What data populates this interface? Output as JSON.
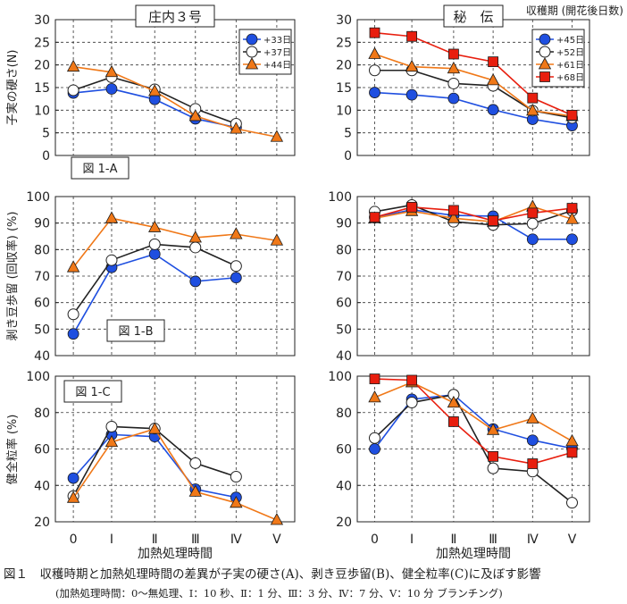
{
  "figure": {
    "caption": "図１　収穫時期と加熱処理時間の差異が子実の硬さ(A)、剥き豆歩留(B)、健全粒率(C)に及ぼす影響",
    "note": "(加熱処理時間：0～無処理、Ⅰ：10 秒、Ⅱ：1 分、Ⅲ：3 分、Ⅳ：7 分、Ⅴ：10 分 ブランチング)",
    "harvest_note": "収穫期 (開花後日数)",
    "xlabel": "加熱処理時間",
    "x_ticks": [
      "0",
      "Ⅰ",
      "Ⅱ",
      "Ⅲ",
      "Ⅳ",
      "Ⅴ"
    ],
    "ylabel_A": "子実の硬さ(N)",
    "ylabel_B": "剥き豆歩留 (回収率) (%)",
    "ylabel_C": "健全粒率 (%)",
    "colors": {
      "blue": "#1f4fe0",
      "black": "#222222",
      "orange": "#f07818",
      "red": "#e81e0e"
    }
  },
  "chart_data": [
    {
      "type": "line",
      "title": "庄内３号",
      "panel_label": "図 1-A",
      "ylim": [
        0,
        30
      ],
      "yticks": [
        0,
        5,
        10,
        15,
        20,
        25,
        30
      ],
      "categories": [
        "0",
        "Ⅰ",
        "Ⅱ",
        "Ⅲ",
        "Ⅳ",
        "Ⅴ"
      ],
      "legend": "top-right",
      "series": [
        {
          "name": "+33日",
          "marker": "circle-filled",
          "color": "#1f4fe0",
          "values": [
            13.8,
            14.7,
            12.4,
            8.1,
            6.2,
            null
          ]
        },
        {
          "name": "+37日",
          "marker": "circle-open",
          "color": "#222222",
          "values": [
            14.4,
            17.3,
            14.6,
            10.3,
            7.0,
            null
          ]
        },
        {
          "name": "+44日",
          "marker": "triangle",
          "color": "#f07818",
          "values": [
            19.6,
            18.4,
            14.2,
            8.7,
            5.9,
            4.1
          ]
        }
      ]
    },
    {
      "type": "line",
      "title": "秘　伝",
      "panel_label": "",
      "ylim": [
        0,
        30
      ],
      "yticks": [
        0,
        5,
        10,
        15,
        20,
        25,
        30
      ],
      "categories": [
        "0",
        "Ⅰ",
        "Ⅱ",
        "Ⅲ",
        "Ⅳ",
        "Ⅴ"
      ],
      "legend": "top-right",
      "series": [
        {
          "name": "+45日",
          "marker": "circle-filled",
          "color": "#1f4fe0",
          "values": [
            13.9,
            13.4,
            12.6,
            10.1,
            8.0,
            6.6
          ]
        },
        {
          "name": "+52日",
          "marker": "circle-open",
          "color": "#222222",
          "values": [
            18.8,
            18.8,
            15.9,
            15.4,
            9.9,
            8.3
          ]
        },
        {
          "name": "+61日",
          "marker": "triangle",
          "color": "#f07818",
          "values": [
            22.4,
            19.6,
            19.2,
            16.6,
            9.9,
            8.7
          ]
        },
        {
          "name": "+68日",
          "marker": "square",
          "color": "#e81e0e",
          "values": [
            27.1,
            26.3,
            22.4,
            20.7,
            12.7,
            8.9
          ]
        }
      ]
    },
    {
      "type": "line",
      "title": "",
      "panel_label": "図 1-B",
      "ylim": [
        40,
        100
      ],
      "yticks": [
        40,
        50,
        60,
        70,
        80,
        90,
        100
      ],
      "categories": [
        "0",
        "Ⅰ",
        "Ⅱ",
        "Ⅲ",
        "Ⅳ",
        "Ⅴ"
      ],
      "legend": "none",
      "series": [
        {
          "name": "+33日",
          "marker": "circle-filled",
          "color": "#1f4fe0",
          "values": [
            48.2,
            73.3,
            78.3,
            68.0,
            69.4,
            null
          ]
        },
        {
          "name": "+37日",
          "marker": "circle-open",
          "color": "#222222",
          "values": [
            55.6,
            76.0,
            82.0,
            80.8,
            73.8,
            null
          ]
        },
        {
          "name": "+44日",
          "marker": "triangle",
          "color": "#f07818",
          "values": [
            73.3,
            91.8,
            88.4,
            84.5,
            85.8,
            83.4
          ]
        }
      ]
    },
    {
      "type": "line",
      "title": "",
      "panel_label": "",
      "ylim": [
        40,
        100
      ],
      "yticks": [
        40,
        50,
        60,
        70,
        80,
        90,
        100
      ],
      "categories": [
        "0",
        "Ⅰ",
        "Ⅱ",
        "Ⅲ",
        "Ⅳ",
        "Ⅴ"
      ],
      "legend": "none",
      "series": [
        {
          "name": "+45日",
          "marker": "circle-filled",
          "color": "#1f4fe0",
          "values": [
            92.2,
            95.0,
            92.9,
            92.6,
            83.9,
            83.9
          ]
        },
        {
          "name": "+52日",
          "marker": "circle-open",
          "color": "#222222",
          "values": [
            94.3,
            96.8,
            90.5,
            89.3,
            89.8,
            94.7
          ]
        },
        {
          "name": "+61日",
          "marker": "triangle",
          "color": "#f07818",
          "values": [
            91.8,
            94.5,
            91.8,
            90.5,
            96.2,
            91.5
          ]
        },
        {
          "name": "+68日",
          "marker": "square",
          "color": "#e81e0e",
          "values": [
            92.2,
            96.0,
            94.8,
            90.9,
            93.8,
            95.6
          ]
        }
      ]
    },
    {
      "type": "line",
      "title": "",
      "panel_label": "図 1-C",
      "ylim": [
        20,
        100
      ],
      "yticks": [
        20,
        40,
        60,
        80,
        100
      ],
      "categories": [
        "0",
        "Ⅰ",
        "Ⅱ",
        "Ⅲ",
        "Ⅳ",
        "Ⅴ"
      ],
      "legend": "none",
      "series": [
        {
          "name": "+33日",
          "marker": "circle-filled",
          "color": "#1f4fe0",
          "values": [
            44.0,
            67.9,
            66.8,
            37.9,
            33.4,
            null
          ]
        },
        {
          "name": "+37日",
          "marker": "circle-open",
          "color": "#222222",
          "values": [
            34.1,
            72.3,
            71.2,
            52.2,
            44.8,
            null
          ]
        },
        {
          "name": "+44日",
          "marker": "triangle",
          "color": "#f07818",
          "values": [
            33.1,
            63.8,
            71.0,
            36.5,
            30.4,
            21.0
          ]
        }
      ]
    },
    {
      "type": "line",
      "title": "",
      "panel_label": "",
      "ylim": [
        20,
        100
      ],
      "yticks": [
        20,
        40,
        60,
        80,
        100
      ],
      "categories": [
        "0",
        "Ⅰ",
        "Ⅱ",
        "Ⅲ",
        "Ⅳ",
        "Ⅴ"
      ],
      "legend": "none",
      "series": [
        {
          "name": "+45日",
          "marker": "circle-filled",
          "color": "#1f4fe0",
          "values": [
            60.0,
            87.3,
            89.8,
            71.0,
            64.8,
            60.3
          ]
        },
        {
          "name": "+52日",
          "marker": "circle-open",
          "color": "#222222",
          "values": [
            66.0,
            85.5,
            89.8,
            49.4,
            47.6,
            30.5
          ]
        },
        {
          "name": "+61日",
          "marker": "triangle",
          "color": "#f07818",
          "values": [
            88.3,
            96.6,
            85.4,
            70.4,
            76.7,
            64.3
          ]
        },
        {
          "name": "+68日",
          "marker": "square",
          "color": "#e81e0e",
          "values": [
            98.5,
            97.8,
            75.0,
            55.9,
            51.9,
            58.1
          ]
        }
      ]
    }
  ]
}
